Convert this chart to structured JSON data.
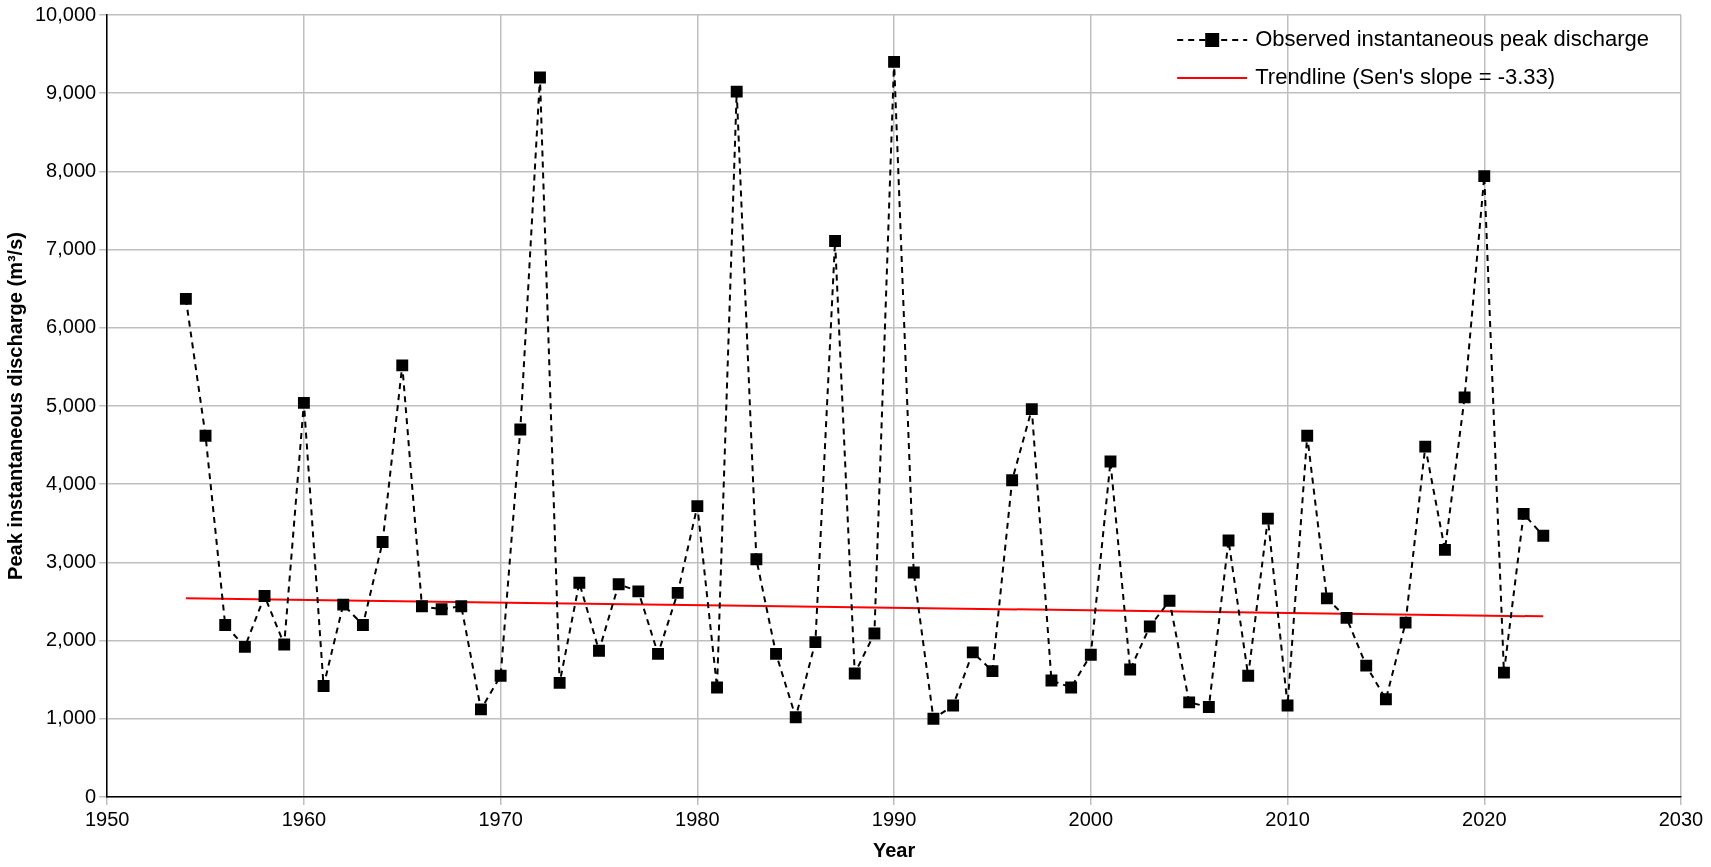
{
  "chart_data": {
    "type": "line",
    "xlabel": "Year",
    "ylabel": "Peak instantaneous discharge (m³/s)",
    "xlim": [
      1950,
      2030
    ],
    "xticks": [
      1950,
      1960,
      1970,
      1980,
      1990,
      2000,
      2010,
      2020,
      2030
    ],
    "ylim": [
      0,
      10000
    ],
    "yticks": [
      {
        "value": 0,
        "label": "0"
      },
      {
        "value": 1000,
        "label": "1,000"
      },
      {
        "value": 2000,
        "label": "2,000"
      },
      {
        "value": 3000,
        "label": "3,000"
      },
      {
        "value": 4000,
        "label": "4,000"
      },
      {
        "value": 5000,
        "label": "5,000"
      },
      {
        "value": 6000,
        "label": "6,000"
      },
      {
        "value": 7000,
        "label": "7,000"
      },
      {
        "value": 8000,
        "label": "8,000"
      },
      {
        "value": 9000,
        "label": "9,000"
      },
      {
        "value": 10000,
        "label": "10,000"
      }
    ],
    "grid": true,
    "legend": "top right",
    "series": [
      {
        "name": "Observed instantaneous peak discharge",
        "color": "#000000",
        "marker": "square",
        "line_style": "dashed",
        "x": [
          1954,
          1955,
          1956,
          1957,
          1958,
          1959,
          1960,
          1961,
          1962,
          1963,
          1964,
          1965,
          1966,
          1967,
          1968,
          1969,
          1970,
          1971,
          1972,
          1973,
          1974,
          1975,
          1976,
          1977,
          1978,
          1979,
          1980,
          1981,
          1982,
          1983,
          1984,
          1985,
          1986,
          1987,
          1988,
          1989,
          1990,
          1991,
          1992,
          1993,
          1994,
          1995,
          1996,
          1997,
          1998,
          1999,
          2000,
          2001,
          2002,
          2003,
          2004,
          2005,
          2006,
          2007,
          2008,
          2009,
          2010,
          2011,
          2012,
          2013,
          2014,
          2015,
          2016,
          2017,
          2018,
          2019,
          2020,
          2021,
          2022,
          2023
        ],
        "values": [
          6370,
          4620,
          2200,
          1920,
          2570,
          1950,
          5040,
          1420,
          2460,
          2200,
          3260,
          5520,
          2440,
          2400,
          2440,
          1120,
          1550,
          4700,
          9200,
          1460,
          2740,
          1870,
          2720,
          2630,
          1830,
          2610,
          3720,
          1400,
          9020,
          3040,
          1830,
          1020,
          1980,
          7110,
          1580,
          2090,
          9400,
          2870,
          1000,
          1170,
          1850,
          1610,
          4050,
          4960,
          1490,
          1400,
          1820,
          4290,
          1630,
          2180,
          2510,
          1210,
          1150,
          3280,
          1550,
          3560,
          1170,
          4620,
          2540,
          2290,
          1680,
          1250,
          2230,
          4480,
          3160,
          5110,
          7940,
          1590,
          3620,
          3340
        ]
      },
      {
        "name": "Trendline (Sen's slope = -3.33)",
        "color": "#ff0000",
        "marker": "none",
        "line_style": "solid",
        "x": [
          1954,
          2023
        ],
        "values": [
          2540,
          2310
        ]
      }
    ]
  }
}
